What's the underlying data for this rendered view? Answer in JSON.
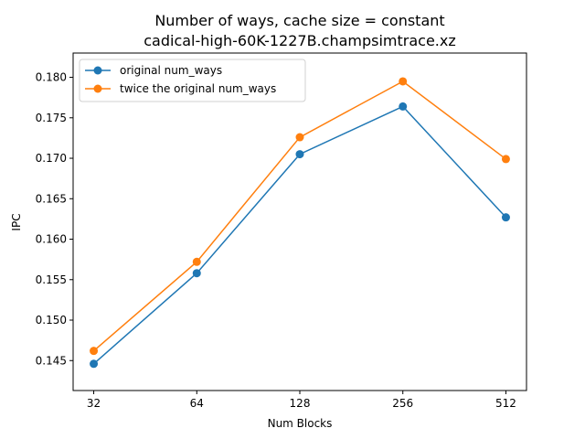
{
  "chart_data": {
    "type": "line",
    "title": "Number of ways, cache size = constant",
    "subtitle": "cadical-high-60K-1227B.champsimtrace.xz",
    "xlabel": "Num Blocks",
    "ylabel": "IPC",
    "x_scale": "log2",
    "x": [
      32,
      64,
      128,
      256,
      512
    ],
    "x_tick_labels": [
      "32",
      "64",
      "128",
      "256",
      "512"
    ],
    "ylim": [
      0.1413,
      0.183
    ],
    "y_ticks": [
      0.145,
      0.15,
      0.155,
      0.16,
      0.165,
      0.17,
      0.175,
      0.18
    ],
    "y_tick_labels": [
      "0.145",
      "0.150",
      "0.155",
      "0.160",
      "0.165",
      "0.170",
      "0.175",
      "0.180"
    ],
    "grid": false,
    "legend_position": "top-left",
    "series": [
      {
        "name": "original num_ways",
        "color": "#1f77b4",
        "values": [
          0.1446,
          0.1558,
          0.1705,
          0.1764,
          0.1627
        ]
      },
      {
        "name": "twice the original num_ways",
        "color": "#ff7f0e",
        "values": [
          0.1462,
          0.1572,
          0.1726,
          0.1795,
          0.1699
        ]
      }
    ]
  }
}
